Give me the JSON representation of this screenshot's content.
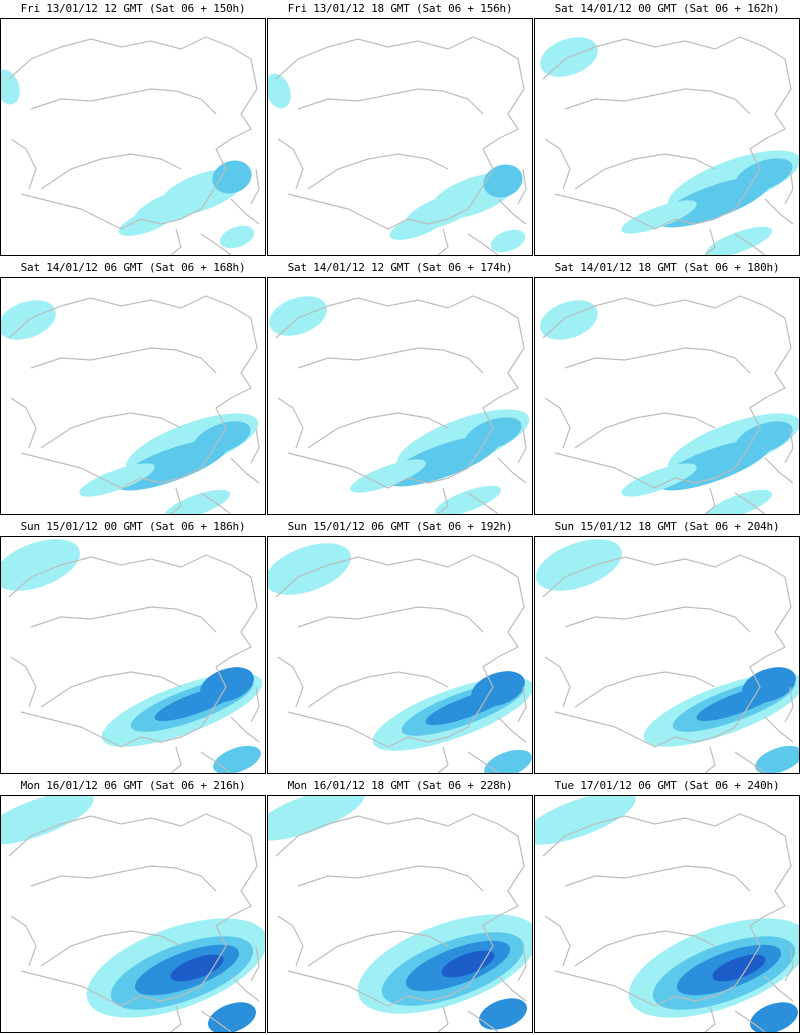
{
  "colors": {
    "background": "#ffffff",
    "frame": "#000000",
    "coastline": "#bcbcbc",
    "precip_light": "#9ff0f5",
    "precip_medium": "#5cc8ec",
    "precip_strong": "#2b8fdc",
    "precip_heavy": "#1d5dc9",
    "precip_extreme": "#1f2fa8"
  },
  "panels": [
    {
      "title": "Fri 13/01/12 12 GMT (Sat 06 + 150h)",
      "intensity": 1
    },
    {
      "title": "Fri 13/01/12 18 GMT (Sat 06 + 156h)",
      "intensity": 1
    },
    {
      "title": "Sat 14/01/12 00 GMT (Sat 06 + 162h)",
      "intensity": 2
    },
    {
      "title": "Sat 14/01/12 06 GMT (Sat 06 + 168h)",
      "intensity": 2
    },
    {
      "title": "Sat 14/01/12 12 GMT (Sat 06 + 174h)",
      "intensity": 2
    },
    {
      "title": "Sat 14/01/12 18 GMT (Sat 06 + 180h)",
      "intensity": 2
    },
    {
      "title": "Sun 15/01/12 00 GMT (Sat 06 + 186h)",
      "intensity": 3
    },
    {
      "title": "Sun 15/01/12 06 GMT (Sat 06 + 192h)",
      "intensity": 3
    },
    {
      "title": "Sun 15/01/12 18 GMT (Sat 06 + 204h)",
      "intensity": 3
    },
    {
      "title": "Mon 16/01/12 06 GMT (Sat 06 + 216h)",
      "intensity": 4
    },
    {
      "title": "Mon 16/01/12 18 GMT (Sat 06 + 228h)",
      "intensity": 4
    },
    {
      "title": "Tue 17/01/12 06 GMT (Sat 06 + 240h)",
      "intensity": 4
    }
  ]
}
